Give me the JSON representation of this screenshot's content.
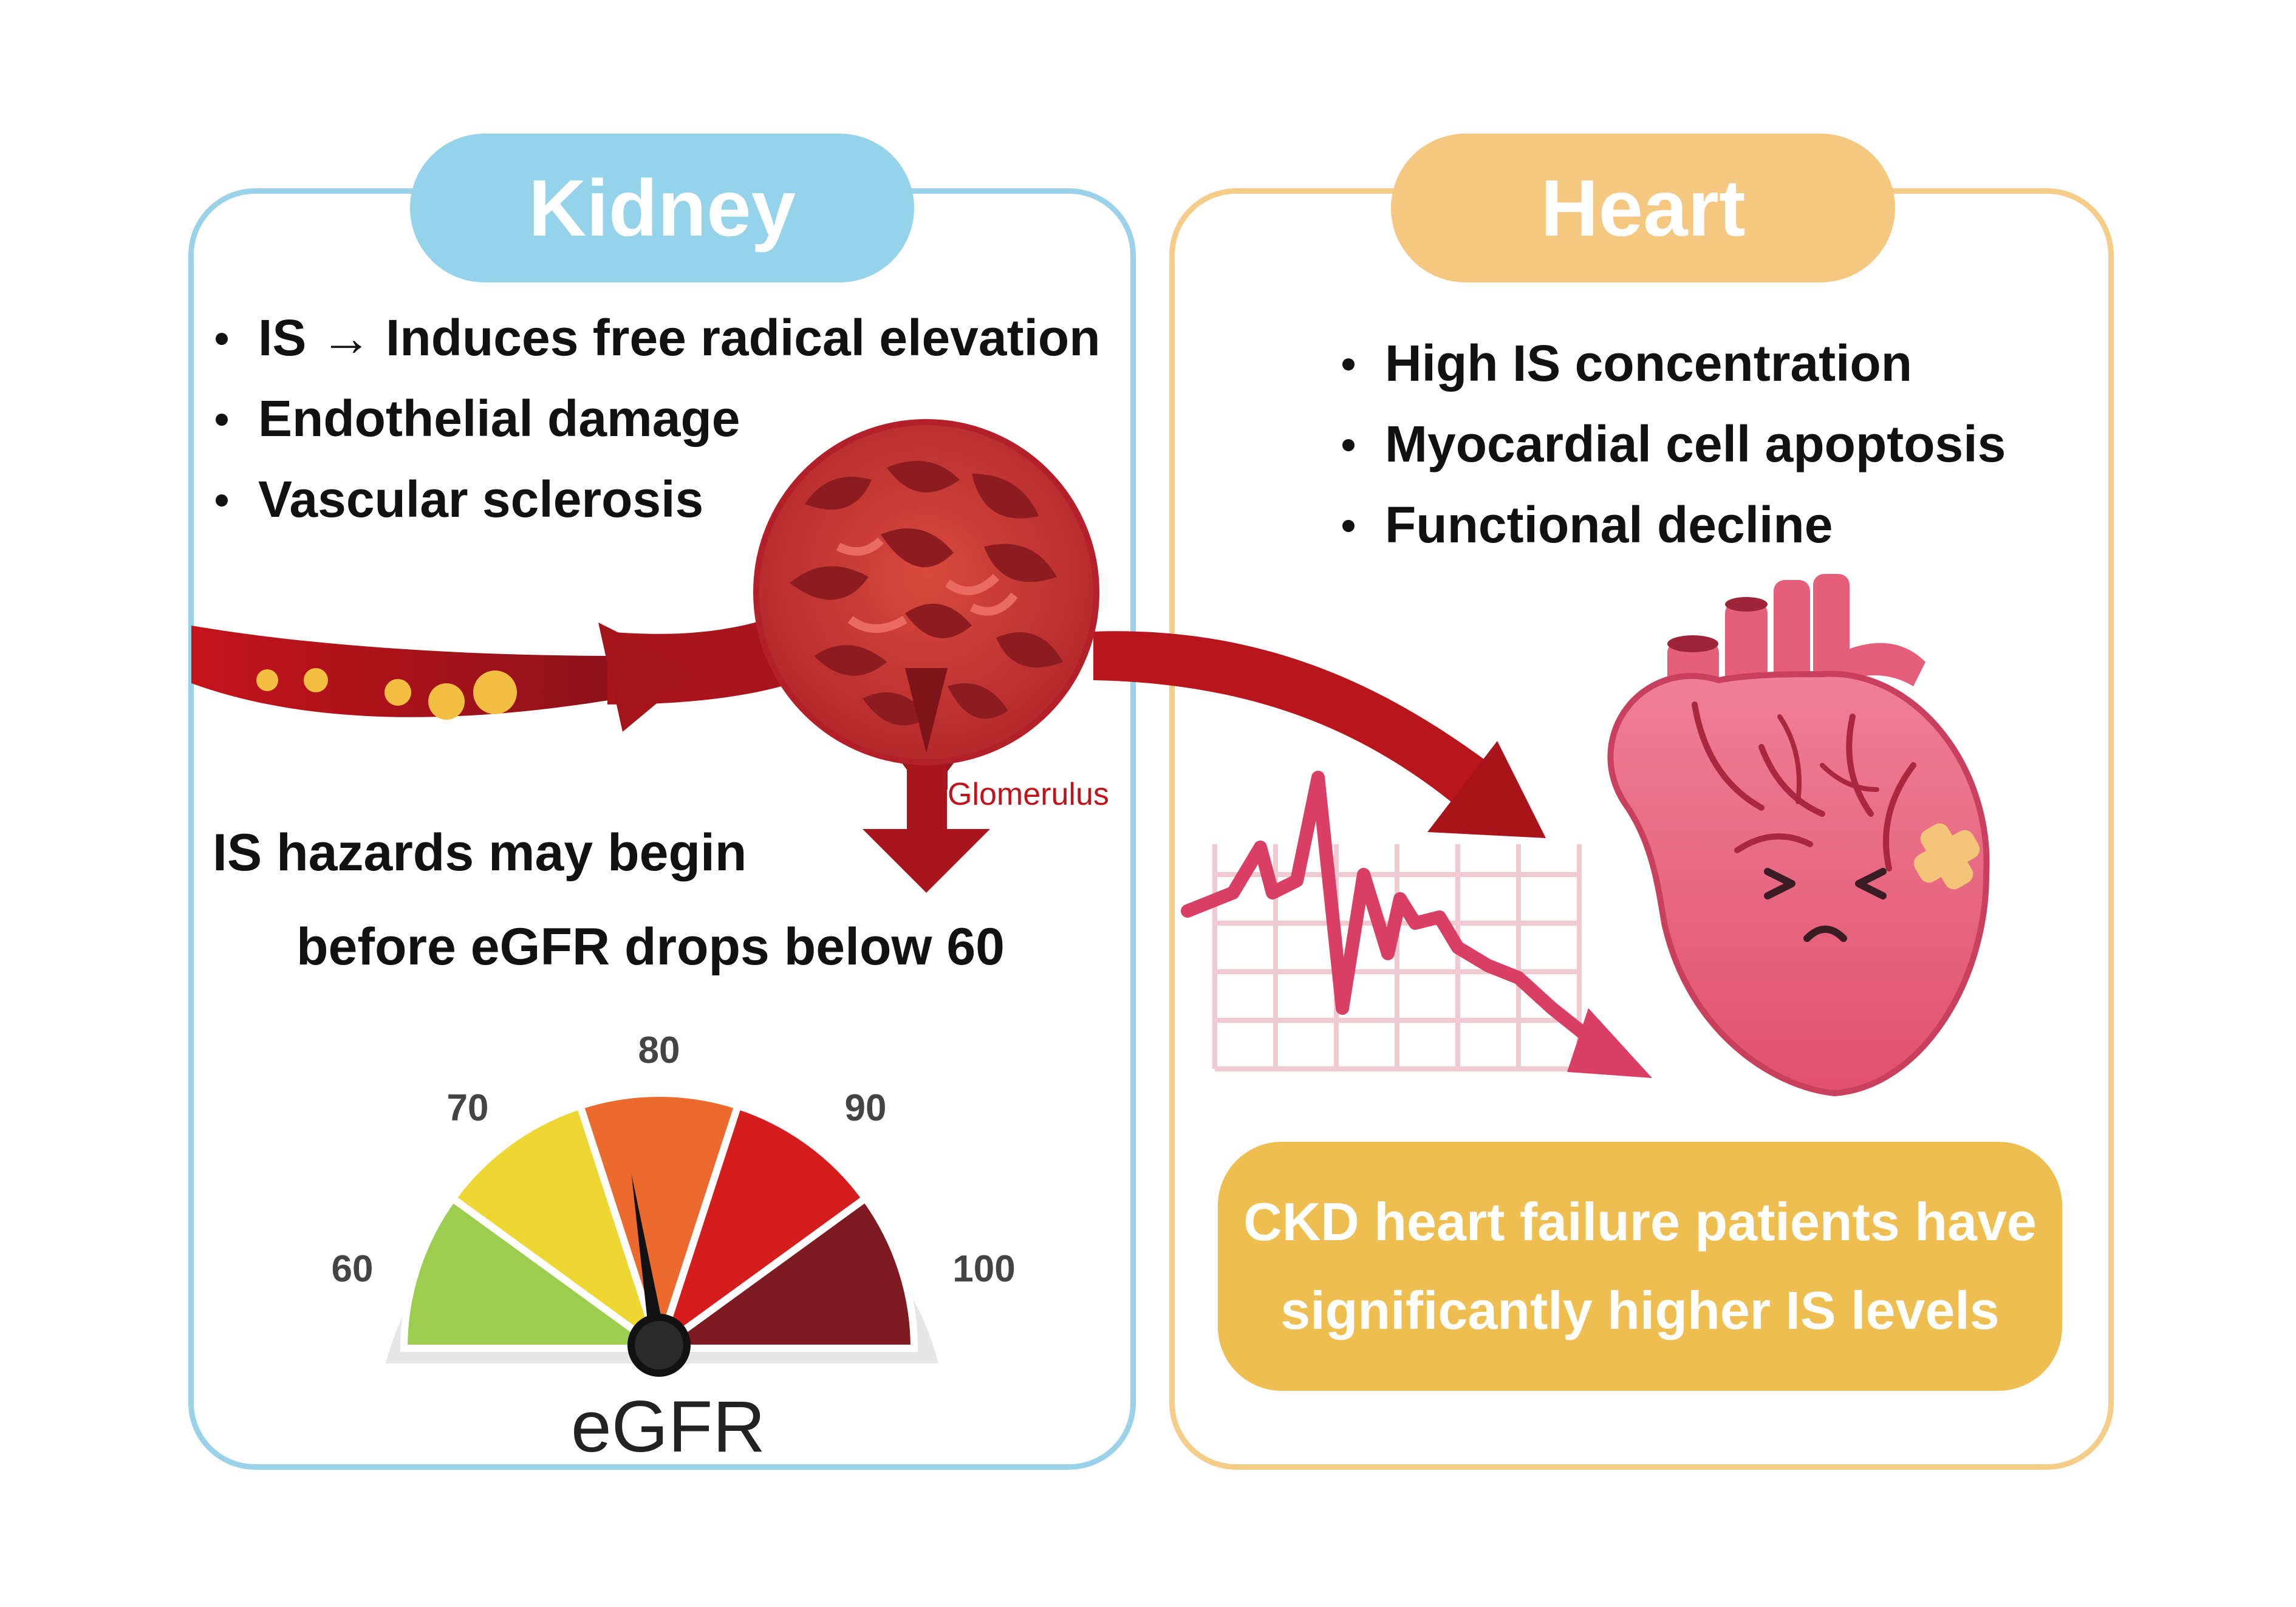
{
  "kidney": {
    "title": "Kidney",
    "bullets": [
      "IS → Induces free radical elevation",
      "Endothelial damage",
      "Vascular sclerosis"
    ],
    "hazard_line1": "IS hazards may begin",
    "hazard_line2": "before eGFR drops below 60",
    "glomerulus_label": "Glomerulus",
    "gauge": {
      "label": "eGFR",
      "tick_labels": [
        "60",
        "70",
        "80",
        "90",
        "100"
      ],
      "needle_value": 78,
      "colors": [
        "#9ccd4f",
        "#efd733",
        "#ec6a2d",
        "#d51d1d",
        "#7d1a22"
      ]
    },
    "accent_color": "#94d3ea"
  },
  "heart": {
    "title": "Heart",
    "bullets": [
      "High IS concentration",
      "Myocardial cell apoptosis",
      "Functional decline"
    ],
    "callout_line1": "CKD heart failure patients have",
    "callout_line2": "significantly higher IS levels",
    "accent_color": "#f5c882",
    "callout_color": "#eebf50"
  }
}
